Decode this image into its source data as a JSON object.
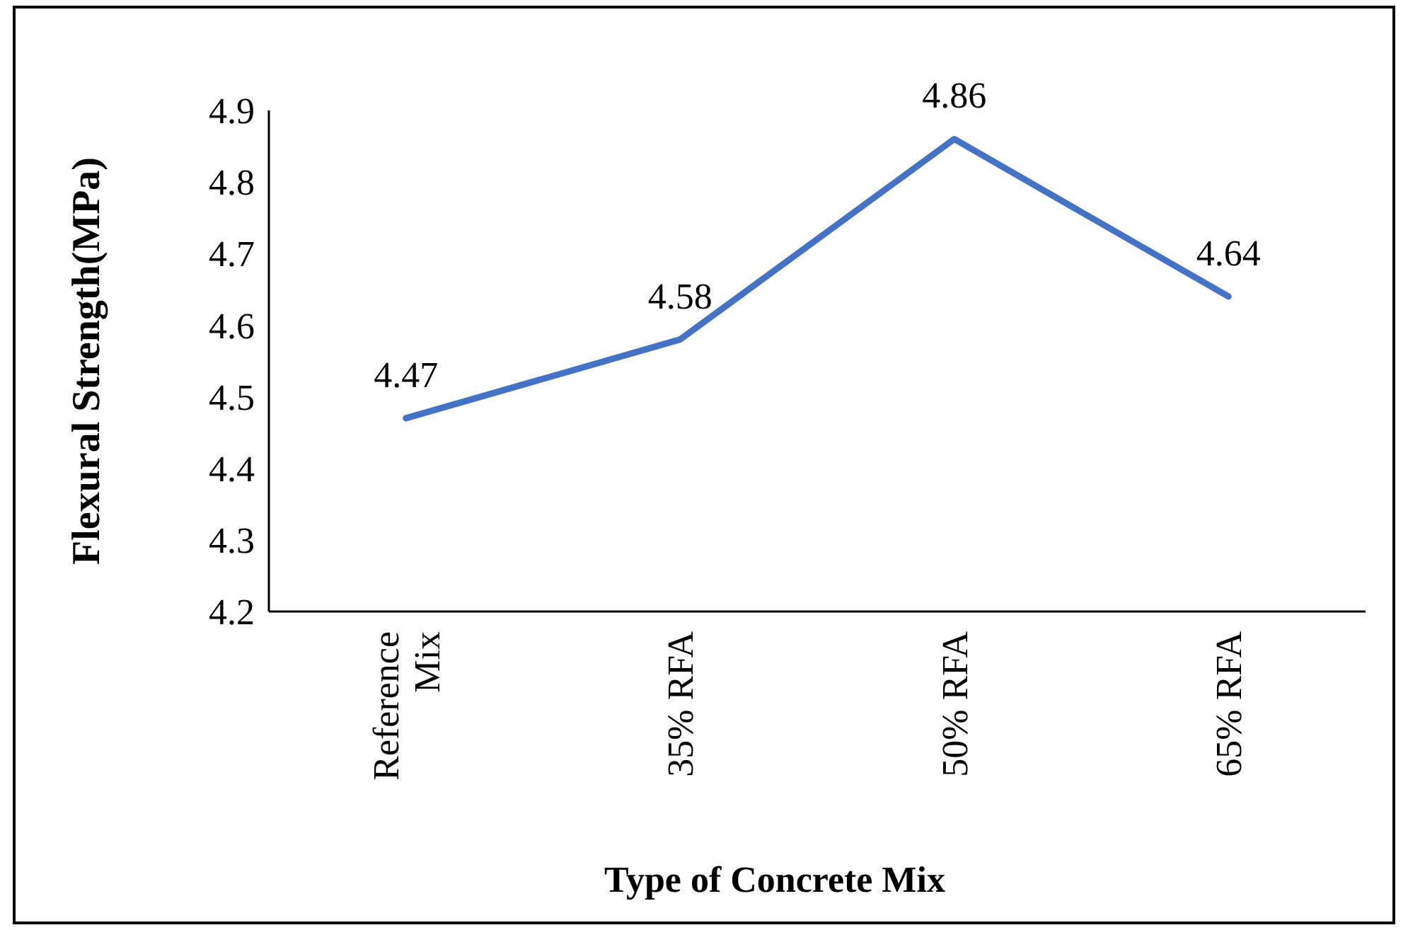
{
  "chart_data": {
    "type": "line",
    "xlabel": "Type of Concrete Mix",
    "ylabel": "Flexural Strength(MPa)",
    "categories": [
      "Reference Mix",
      "35% RFA",
      "50% RFA",
      "65% RFA"
    ],
    "series": [
      {
        "color": "#4472c4",
        "values": [
          4.47,
          4.58,
          4.86,
          4.64
        ]
      }
    ],
    "ylim": [
      4.2,
      4.9
    ],
    "yticks": [
      4.2,
      4.3,
      4.4,
      4.5,
      4.6,
      4.7,
      4.8,
      4.9
    ],
    "data_labels": true,
    "marker": "none",
    "line_style": "solid"
  }
}
